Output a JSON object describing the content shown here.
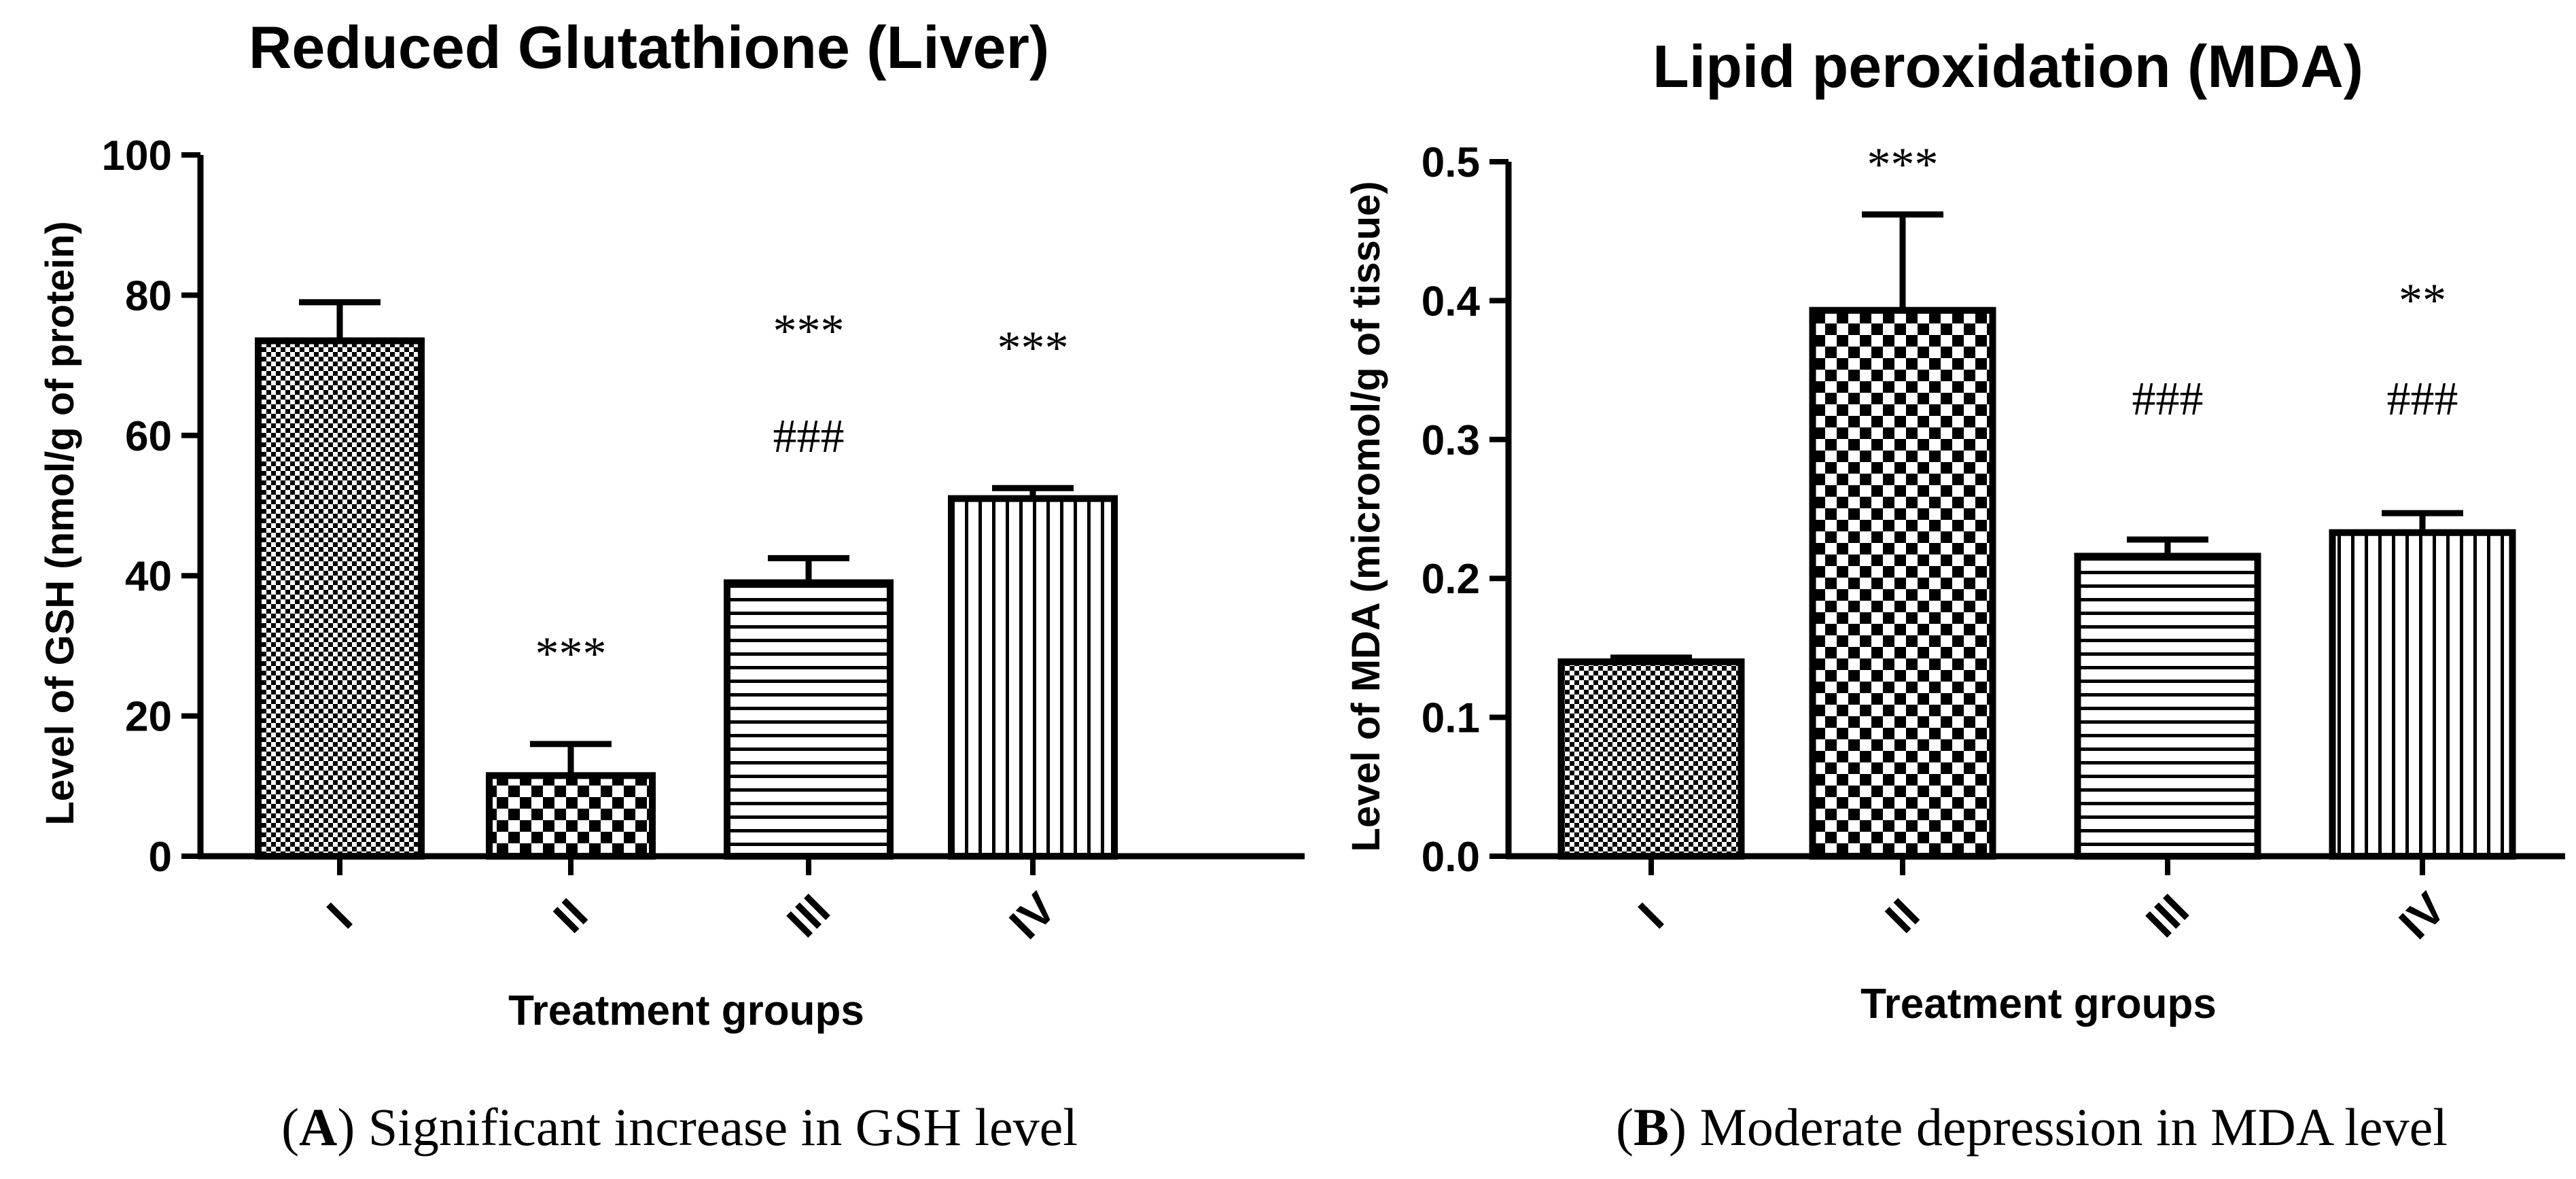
{
  "chart_data": [
    {
      "type": "bar",
      "title": "Reduced Glutathione (Liver)",
      "xlabel": "Treatment groups",
      "ylabel": "Level of GSH (nmol/g of protein)",
      "ylim": [
        0,
        100
      ],
      "yticks": [
        "0",
        "20",
        "40",
        "60",
        "80",
        "100"
      ],
      "ytick_values": [
        0,
        20,
        40,
        60,
        80,
        100
      ],
      "categories": [
        "I",
        "II",
        "III",
        "IV"
      ],
      "values": [
        73.5,
        11.5,
        39,
        51
      ],
      "errors": [
        5.5,
        4.5,
        3.5,
        1.5
      ],
      "annotations": [
        [
          "",
          ""
        ],
        [
          "***",
          ""
        ],
        [
          "***",
          "###"
        ],
        [
          "***",
          ""
        ]
      ],
      "caption_letter": "A",
      "caption_text": ") Significant increase in GSH level"
    },
    {
      "type": "bar",
      "title": "Lipid peroxidation (MDA)",
      "xlabel": "Treatment groups",
      "ylabel": "Level of MDA (micromol/g of tissue)",
      "ylim": [
        0,
        0.5
      ],
      "yticks": [
        "0.0",
        "0.1",
        "0.2",
        "0.3",
        "0.4",
        "0.5"
      ],
      "ytick_values": [
        0,
        0.1,
        0.2,
        0.3,
        0.4,
        0.5
      ],
      "categories": [
        "I",
        "II",
        "III",
        "IV"
      ],
      "values": [
        0.14,
        0.393,
        0.216,
        0.233
      ],
      "errors": [
        0.003,
        0.069,
        0.012,
        0.014
      ],
      "annotations": [
        [
          "",
          ""
        ],
        [
          "***",
          ""
        ],
        [
          "",
          "###"
        ],
        [
          "**",
          "###"
        ]
      ],
      "caption_letter": "B",
      "caption_text": ") Moderate depression in MDA level"
    }
  ]
}
